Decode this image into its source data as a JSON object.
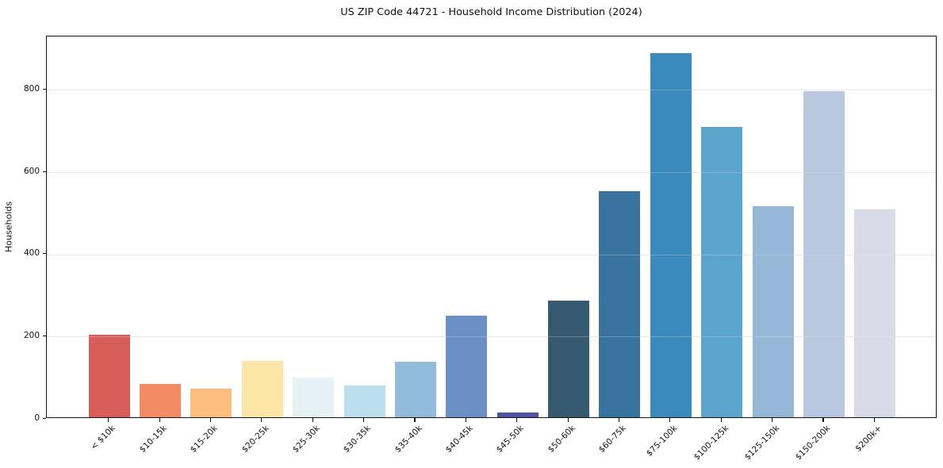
{
  "chart_data": {
    "type": "bar",
    "title": "US ZIP Code 44721 - Household Income Distribution (2024)",
    "xlabel": "",
    "ylabel": "Households",
    "categories": [
      "< $10k",
      "$10-15k",
      "$15-20k",
      "$20-25k",
      "$25-30k",
      "$30-35k",
      "$35-40k",
      "$40-45k",
      "$45-50k",
      "$50-60k",
      "$60-75k",
      "$75-100k",
      "$100-125k",
      "$125-150k",
      "$150-200k",
      "$200k+"
    ],
    "values": [
      200,
      82,
      70,
      138,
      97,
      77,
      135,
      247,
      12,
      283,
      550,
      885,
      706,
      513,
      794,
      505
    ],
    "bar_colors": [
      "#d65d58",
      "#f28a62",
      "#fdbe80",
      "#fde6a6",
      "#e6f1f6",
      "#bbdfec",
      "#92bcdc",
      "#6a90c6",
      "#5153a4",
      "#365a72",
      "#38749e",
      "#3a8abd",
      "#5ba4cb",
      "#95b7d8",
      "#b9c8e0",
      "#d8dae8"
    ],
    "yticks": [
      0,
      200,
      400,
      600,
      800
    ],
    "ylim": [
      0,
      930
    ],
    "grid": "horizontal",
    "legend": "none",
    "x_tick_rotation_deg": 45,
    "background_color": "#ffffff",
    "spine_color": "#111111",
    "grid_color": "#e7e7e7"
  }
}
